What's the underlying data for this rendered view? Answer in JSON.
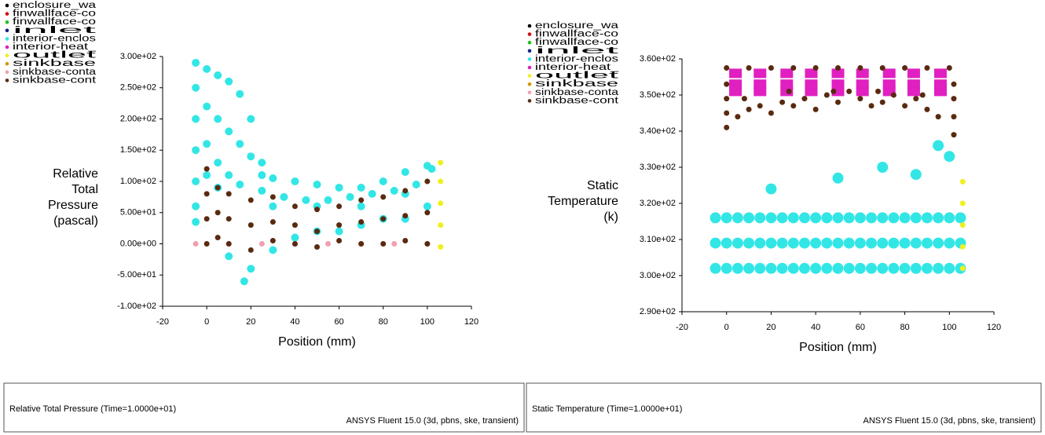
{
  "chart_data": [
    {
      "type": "scatter",
      "x_label": "Position (mm)",
      "y_label": [
        "Relative",
        "Total",
        "Pressure",
        "(pascal)"
      ],
      "xlim": [
        -20,
        120
      ],
      "xticks": [
        -20,
        0,
        20,
        40,
        60,
        80,
        100,
        120
      ],
      "ylim": [
        -100,
        300
      ],
      "yticks": [
        {
          "value": -100,
          "label": "-1.00e+02"
        },
        {
          "value": -50,
          "label": "-5.00e+01"
        },
        {
          "value": 0,
          "label": "0.00e+00"
        },
        {
          "value": 50,
          "label": "5.00e+01"
        },
        {
          "value": 100,
          "label": "1.00e+02"
        },
        {
          "value": 150,
          "label": "1.50e+02"
        },
        {
          "value": 200,
          "label": "2.00e+02"
        },
        {
          "value": 250,
          "label": "2.50e+02"
        },
        {
          "value": 300,
          "label": "3.00e+02"
        }
      ],
      "series": [
        {
          "name": "enclosure_wa",
          "color": "#000000",
          "x": [],
          "y": []
        },
        {
          "name": "finwallface-co",
          "color": "#d01010",
          "x": [],
          "y": []
        },
        {
          "name": "finwallface-co",
          "color": "#20c020",
          "x": [],
          "y": []
        },
        {
          "name": "inlet",
          "color": "#10208a",
          "x": [],
          "y": []
        },
        {
          "name": "interior-enclos",
          "color": "#33e6e6",
          "x": [
            -5,
            -5,
            -5,
            -5,
            -5,
            -5,
            -5,
            0,
            0,
            0,
            0,
            5,
            5,
            5,
            10,
            10,
            10,
            15,
            15,
            20,
            20,
            25,
            25,
            30,
            40,
            50,
            60,
            70,
            80,
            90,
            100,
            17,
            20,
            10,
            30,
            40,
            50,
            60,
            70,
            80,
            90,
            100,
            30,
            50,
            70,
            90,
            5,
            15,
            25,
            35,
            45,
            55,
            65,
            75,
            85,
            95,
            102
          ],
          "y": [
            290,
            250,
            200,
            150,
            100,
            60,
            35,
            280,
            220,
            160,
            110,
            270,
            200,
            130,
            260,
            180,
            110,
            240,
            160,
            200,
            140,
            130,
            110,
            105,
            100,
            95,
            90,
            90,
            100,
            115,
            125,
            -60,
            -40,
            -20,
            -10,
            10,
            20,
            20,
            30,
            40,
            40,
            60,
            60,
            60,
            60,
            80,
            90,
            95,
            85,
            75,
            70,
            70,
            75,
            80,
            85,
            95,
            120
          ]
        },
        {
          "name": "interior-heat_",
          "color": "#e020c0",
          "x": [],
          "y": []
        },
        {
          "name": "outlet",
          "color": "#f0f020",
          "x": [
            106,
            106,
            106,
            106,
            106
          ],
          "y": [
            -5,
            30,
            65,
            100,
            130
          ]
        },
        {
          "name": "sinkbase",
          "color": "#d09a00",
          "x": [],
          "y": []
        },
        {
          "name": "sinkbase-conta",
          "color": "#f0a0b0",
          "x": [
            -5,
            10,
            25,
            40,
            55,
            70,
            85,
            100
          ],
          "y": [
            0,
            0,
            0,
            0,
            0,
            0,
            0,
            0
          ]
        },
        {
          "name": "sinkbase-cont",
          "color": "#5a2a10",
          "x": [
            0,
            0,
            0,
            0,
            5,
            5,
            5,
            10,
            10,
            10,
            20,
            20,
            20,
            30,
            30,
            30,
            40,
            40,
            40,
            50,
            50,
            50,
            60,
            60,
            60,
            70,
            70,
            70,
            80,
            80,
            80,
            90,
            90,
            90,
            100,
            100,
            100
          ],
          "y": [
            120,
            80,
            40,
            0,
            90,
            50,
            10,
            80,
            40,
            0,
            70,
            30,
            -10,
            75,
            35,
            5,
            60,
            30,
            0,
            55,
            20,
            -5,
            60,
            30,
            5,
            70,
            35,
            0,
            75,
            40,
            0,
            85,
            45,
            5,
            100,
            50,
            0
          ]
        }
      ]
    },
    {
      "type": "scatter",
      "x_label": "Position (mm)",
      "y_label": [
        "Static",
        "Temperature",
        "(k)"
      ],
      "xlim": [
        -20,
        120
      ],
      "xticks": [
        -20,
        0,
        20,
        40,
        60,
        80,
        100,
        120
      ],
      "ylim": [
        290,
        360
      ],
      "yticks": [
        {
          "value": 290,
          "label": "2.90e+02"
        },
        {
          "value": 300,
          "label": "3.00e+02"
        },
        {
          "value": 310,
          "label": "3.10e+02"
        },
        {
          "value": 320,
          "label": "3.20e+02"
        },
        {
          "value": 330,
          "label": "3.30e+02"
        },
        {
          "value": 340,
          "label": "3.40e+02"
        },
        {
          "value": 350,
          "label": "3.50e+02"
        },
        {
          "value": 360,
          "label": "3.60e+02"
        }
      ],
      "series": [
        {
          "name": "enclosure_wa",
          "color": "#000000",
          "x": [],
          "y": []
        },
        {
          "name": "finwallface-co",
          "color": "#d01010",
          "x": [],
          "y": []
        },
        {
          "name": "finwallface-co",
          "color": "#20c020",
          "x": [],
          "y": []
        },
        {
          "name": "inlet",
          "color": "#10208a",
          "x": [],
          "y": []
        },
        {
          "name": "interior-enclos",
          "color": "#33e6e6",
          "x": [
            -5,
            0,
            5,
            10,
            15,
            20,
            25,
            30,
            35,
            40,
            45,
            50,
            55,
            60,
            65,
            70,
            75,
            80,
            85,
            90,
            95,
            100,
            105,
            -5,
            0,
            5,
            10,
            15,
            20,
            25,
            30,
            35,
            40,
            45,
            50,
            55,
            60,
            65,
            70,
            75,
            80,
            85,
            90,
            95,
            100,
            105,
            -5,
            0,
            5,
            10,
            15,
            20,
            25,
            30,
            35,
            40,
            45,
            50,
            55,
            60,
            65,
            70,
            75,
            80,
            85,
            90,
            95,
            100,
            105,
            20,
            50,
            70,
            85,
            95,
            100
          ],
          "y": [
            302,
            302,
            302,
            302,
            302,
            302,
            302,
            302,
            302,
            302,
            302,
            302,
            302,
            302,
            302,
            302,
            302,
            302,
            302,
            302,
            302,
            302,
            302,
            309,
            309,
            309,
            309,
            309,
            309,
            309,
            309,
            309,
            309,
            309,
            309,
            309,
            309,
            309,
            309,
            309,
            309,
            309,
            309,
            309,
            309,
            309,
            316,
            316,
            316,
            316,
            316,
            316,
            316,
            316,
            316,
            316,
            316,
            316,
            316,
            316,
            316,
            316,
            316,
            316,
            316,
            316,
            316,
            316,
            316,
            324,
            327,
            330,
            328,
            336,
            333
          ]
        },
        {
          "name": "interior-heat_",
          "color": "#e020c0",
          "x": [
            4,
            4,
            4,
            15,
            15,
            15,
            27,
            27,
            27,
            38,
            38,
            38,
            50,
            50,
            50,
            61,
            61,
            61,
            73,
            73,
            73,
            84,
            84,
            84,
            96,
            96,
            96
          ],
          "y": [
            356,
            353,
            351,
            356,
            353,
            351,
            356,
            353,
            351,
            356,
            353,
            351,
            356,
            353,
            351,
            356,
            353,
            351,
            356,
            353,
            351,
            356,
            353,
            351,
            356,
            353,
            351
          ]
        },
        {
          "name": "outlet",
          "color": "#f0f020",
          "x": [
            106,
            106,
            106,
            106,
            106
          ],
          "y": [
            302,
            308,
            314,
            320,
            326
          ]
        },
        {
          "name": "sinkbase",
          "color": "#d09a00",
          "x": [],
          "y": []
        },
        {
          "name": "sinkbase-conta",
          "color": "#f0a0b0",
          "x": [],
          "y": []
        },
        {
          "name": "sinkbase-cont",
          "color": "#5a2a10",
          "x": [
            0,
            10,
            20,
            30,
            40,
            50,
            60,
            70,
            80,
            90,
            100,
            0,
            0,
            0,
            0,
            102,
            102,
            102,
            102,
            5,
            10,
            15,
            20,
            25,
            30,
            35,
            40,
            45,
            50,
            55,
            60,
            65,
            70,
            75,
            80,
            85,
            90,
            95,
            8,
            28,
            48,
            68,
            88
          ],
          "y": [
            357.5,
            357.5,
            357.5,
            357.5,
            357.5,
            357.5,
            357.5,
            357.5,
            357.5,
            357.5,
            357.5,
            341,
            345,
            349,
            353,
            339,
            344,
            349,
            353,
            344,
            346,
            347,
            345,
            348,
            347,
            349,
            346,
            350,
            348,
            351,
            349,
            347,
            348,
            350,
            347,
            349,
            346,
            344,
            349,
            351,
            351,
            351,
            350
          ]
        }
      ]
    }
  ],
  "footers": [
    {
      "title": "Relative Total Pressure  (Time=1.0000e+01)",
      "info": "ANSYS Fluent 15.0 (3d, pbns, ske, transient)"
    },
    {
      "title": "Static Temperature  (Time=1.0000e+01)",
      "info": "ANSYS Fluent 15.0 (3d, pbns, ske, transient)"
    }
  ]
}
